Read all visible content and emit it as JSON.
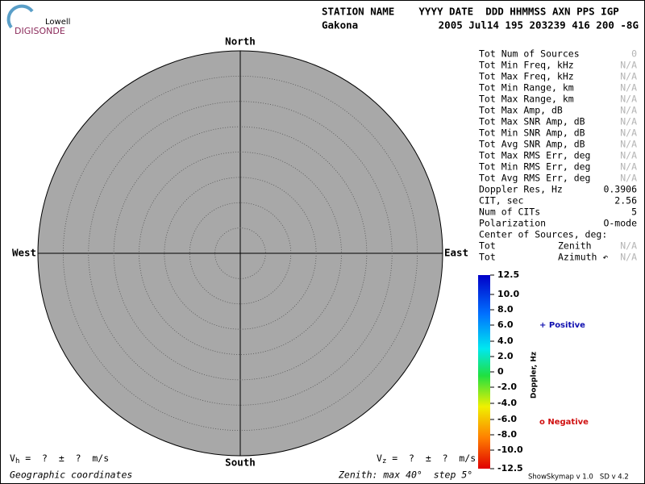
{
  "logo": {
    "top": "Lowell",
    "bottom": "DIGISONDE"
  },
  "header": {
    "columns": "STATION NAME    YYYY DATE  DDD HHMMSS AXN PPS IGP",
    "station": "Gakona",
    "values": "2005 Jul14 195 203239 416 200 -8G"
  },
  "skymap": {
    "north": "North",
    "south": "South",
    "west": "West",
    "east": "East"
  },
  "stats": [
    {
      "label": "Tot Num of Sources",
      "value": "0",
      "muted": true
    },
    {
      "label": "Tot Min Freq, kHz",
      "value": "N/A",
      "muted": true
    },
    {
      "label": "Tot Max Freq, kHz",
      "value": "N/A",
      "muted": true
    },
    {
      "label": "Tot Min Range, km",
      "value": "N/A",
      "muted": true
    },
    {
      "label": "Tot Max Range, km",
      "value": "N/A",
      "muted": true
    },
    {
      "label": "Tot Max Amp, dB",
      "value": "N/A",
      "muted": true
    },
    {
      "label": "Tot Max SNR Amp, dB",
      "value": "N/A",
      "muted": true
    },
    {
      "label": "Tot Min SNR Amp, dB",
      "value": "N/A",
      "muted": true
    },
    {
      "label": "Tot Avg SNR Amp, dB",
      "value": "N/A",
      "muted": true
    },
    {
      "label": "Tot Max RMS Err, deg",
      "value": "N/A",
      "muted": true
    },
    {
      "label": "Tot Min RMS Err, deg",
      "value": "N/A",
      "muted": true
    },
    {
      "label": "Tot Avg RMS Err, deg",
      "value": "N/A",
      "muted": true
    },
    {
      "label": "Doppler Res, Hz",
      "value": "0.3906",
      "muted": false
    },
    {
      "label": "CIT, sec",
      "value": "2.56",
      "muted": false
    },
    {
      "label": "Num of CITs",
      "value": "5",
      "muted": false
    },
    {
      "label": "Polarization",
      "value": "O-mode",
      "muted": false
    },
    {
      "label": "Center of Sources, deg:"
    },
    {
      "label": "Tot",
      "sub": "Zenith",
      "value": "N/A",
      "muted": true
    },
    {
      "label": "Tot",
      "sub": "Azimuth ↶",
      "value": "N/A",
      "muted": true
    }
  ],
  "colorbar": {
    "title": "Doppler, Hz",
    "ticks": [
      "12.5",
      "10.0",
      "8.0",
      "6.0",
      "4.0",
      "2.0",
      "0",
      "-2.0",
      "-4.0",
      "-6.0",
      "-8.0",
      "-10.0",
      "-12.5"
    ]
  },
  "legend": {
    "positive": "+ Positive",
    "negative": "o Negative"
  },
  "footer": {
    "vh": {
      "v": "V",
      "sub": "h",
      "rest": " =  ?  ±  ?  m/s"
    },
    "vz": {
      "v": "V",
      "sub": "z",
      "rest": " =  ?  ±  ?  m/s"
    },
    "coords": "Geographic coordinates",
    "zenith": "Zenith: max 40°  step 5°",
    "version": "ShowSkymap v 1.0   SD v 4.2"
  }
}
